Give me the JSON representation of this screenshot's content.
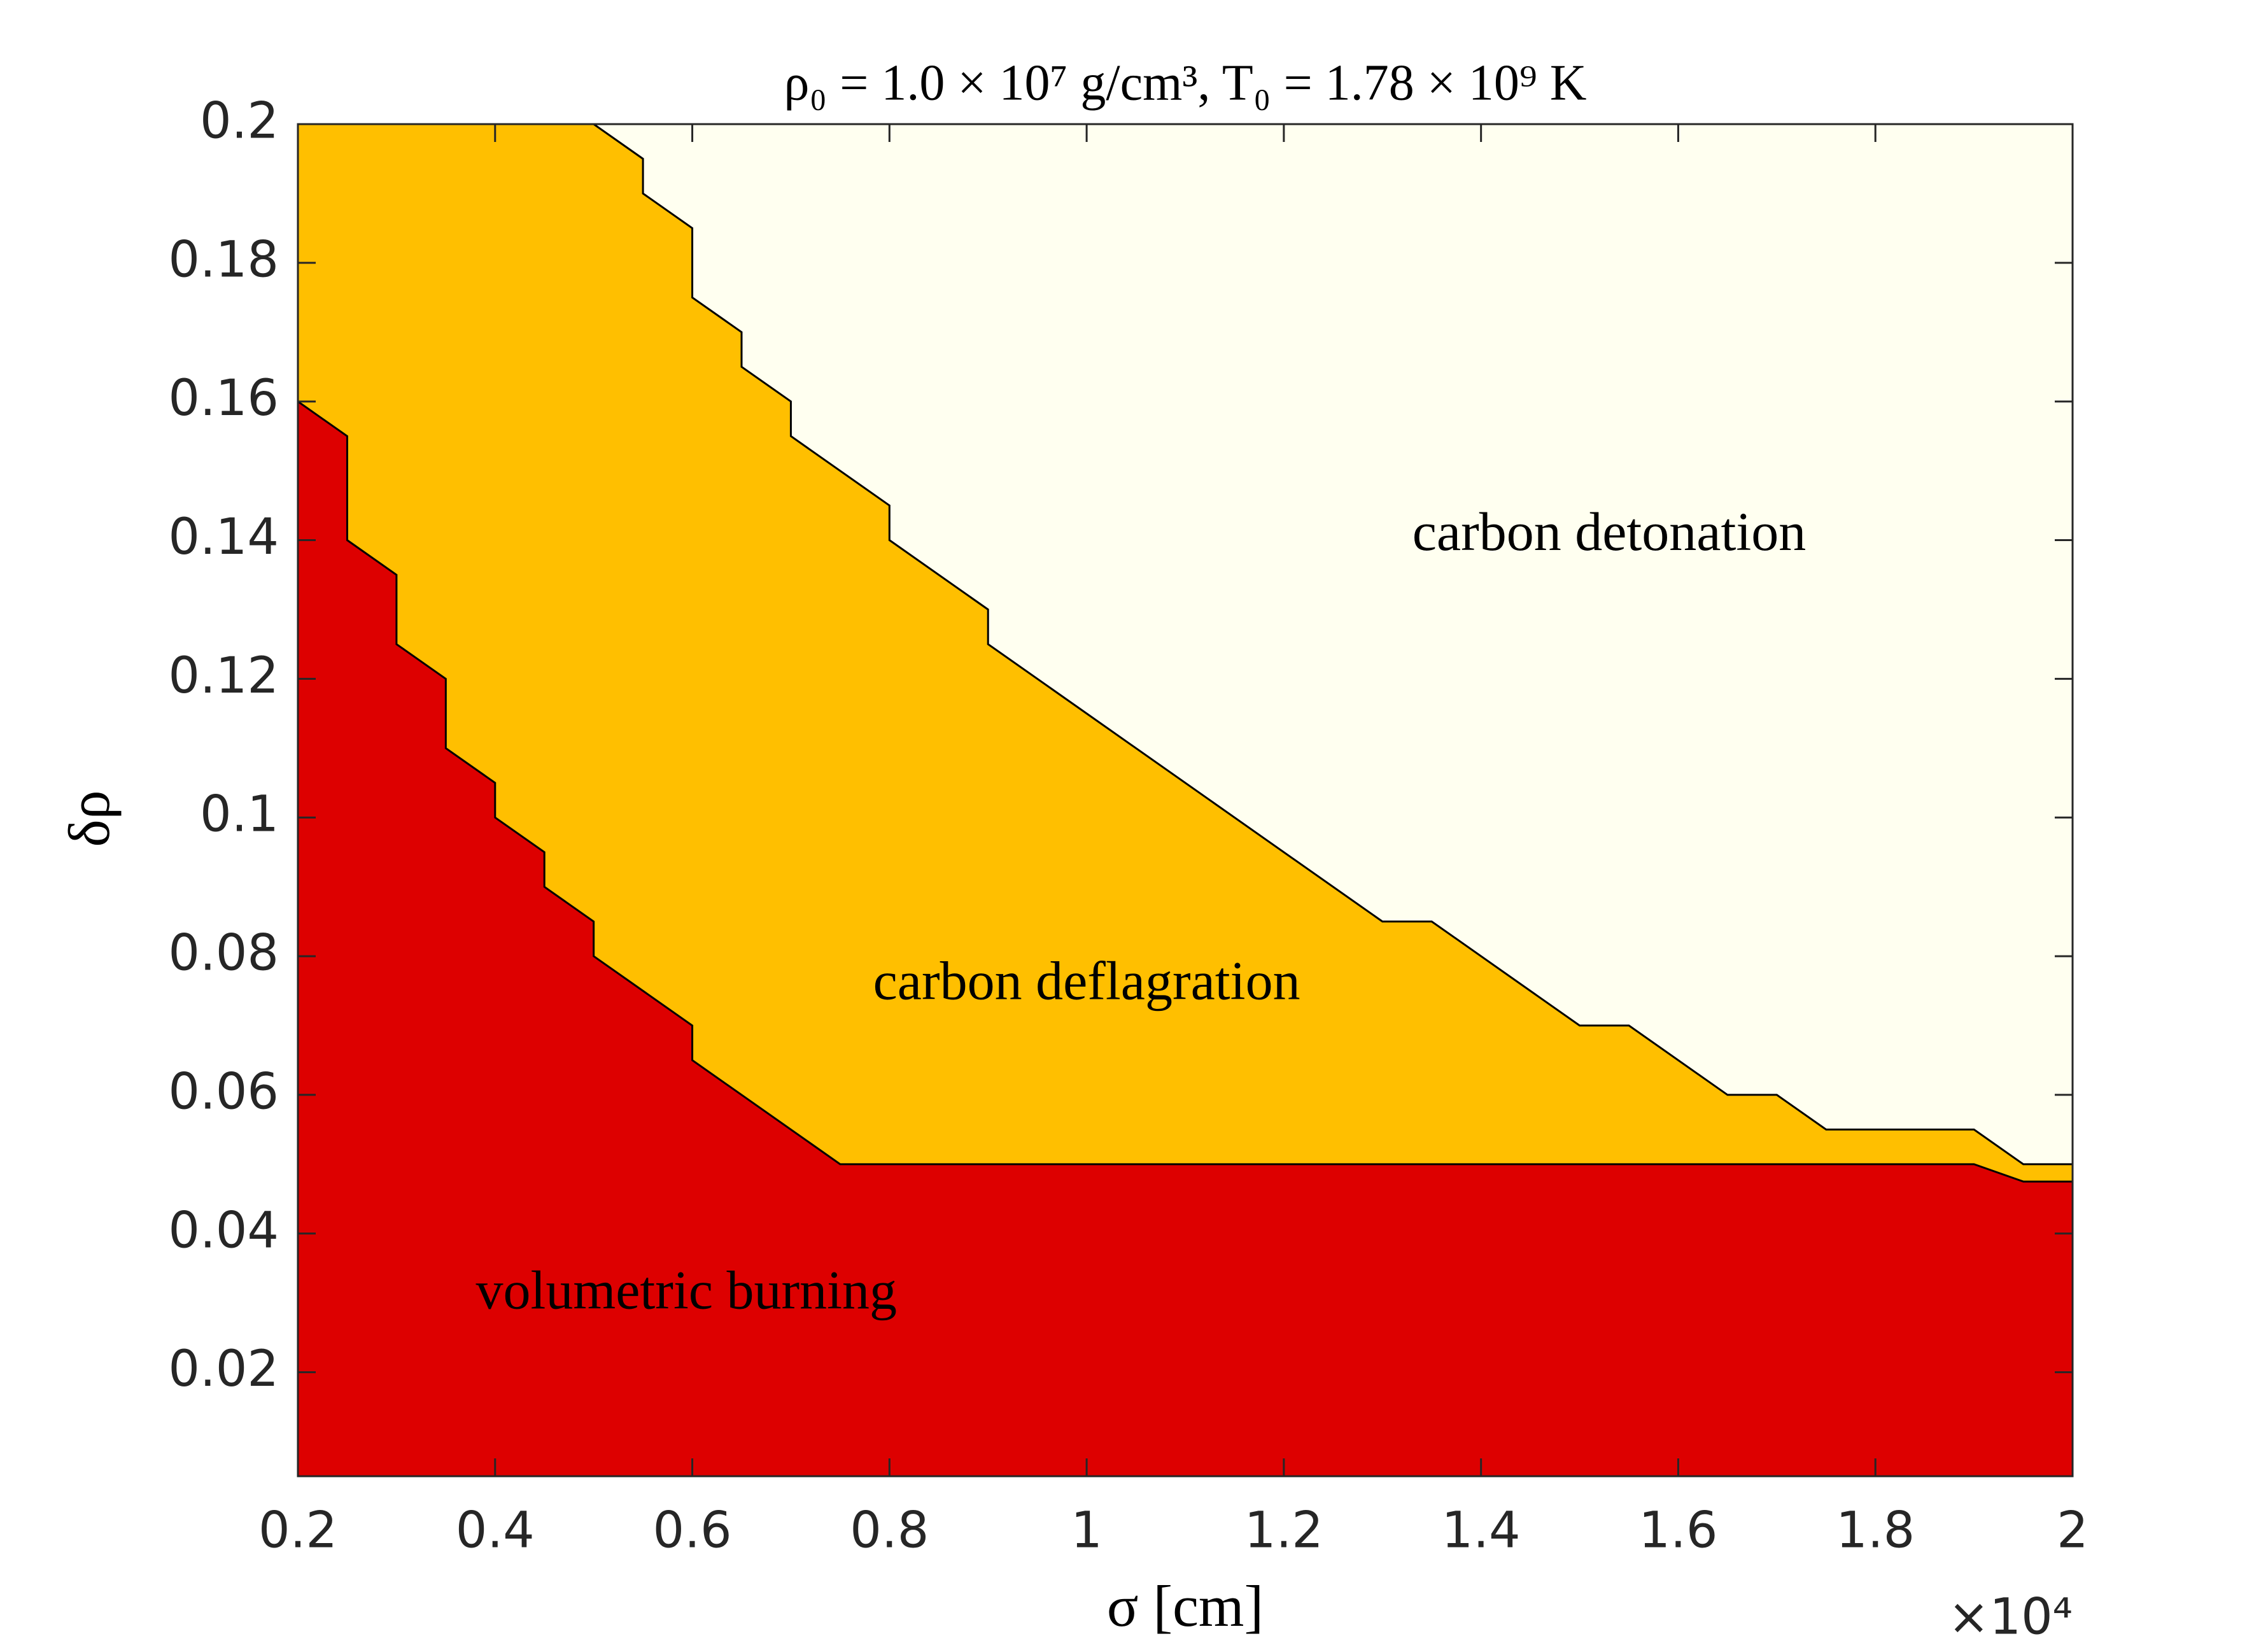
{
  "chart_data": {
    "type": "area",
    "title": "ρ₀ = 1.0 × 10⁷ g/cm³, T₀ = 1.78 × 10⁹ K",
    "x_label": "σ [cm]",
    "y_label": "δρ",
    "x_multiplier": "×10⁴",
    "series": [
      {
        "name": "carbon detonation",
        "color": "#fffff0"
      },
      {
        "name": "carbon deflagration",
        "color": "#ffbf00",
        "x": [
          0.2,
          0.5,
          0.55,
          0.55,
          0.6,
          0.6,
          0.65,
          0.65,
          0.7,
          0.7,
          0.8,
          0.8,
          0.9,
          0.9,
          1.3,
          1.35,
          1.5,
          1.55,
          1.65,
          1.7,
          1.75,
          1.9,
          1.95,
          2
        ],
        "values": [
          0.2,
          0.2,
          0.195,
          0.19,
          0.185,
          0.175,
          0.17,
          0.165,
          0.16,
          0.155,
          0.145,
          0.14,
          0.13,
          0.125,
          0.085,
          0.085,
          0.07,
          0.07,
          0.06,
          0.06,
          0.055,
          0.055,
          0.05,
          0.05
        ]
      },
      {
        "name": "volumetric burning",
        "color": "#dd0000",
        "x": [
          0.2,
          0.25,
          0.25,
          0.3,
          0.3,
          0.35,
          0.35,
          0.4,
          0.4,
          0.45,
          0.45,
          0.5,
          0.5,
          0.6,
          0.6,
          0.75,
          1.9,
          1.95,
          2
        ],
        "values": [
          0.16,
          0.155,
          0.14,
          0.135,
          0.125,
          0.12,
          0.11,
          0.105,
          0.1,
          0.095,
          0.09,
          0.085,
          0.08,
          0.07,
          0.065,
          0.05,
          0.05,
          0.0475,
          0.0475
        ]
      }
    ],
    "xlim": [
      0.2,
      2
    ],
    "xticks": [
      0.2,
      0.4,
      0.6,
      0.8,
      1,
      1.2,
      1.4,
      1.6,
      1.8,
      2
    ],
    "ylim": [
      0.005,
      0.2
    ],
    "yticks": [
      0.02,
      0.04,
      0.06,
      0.08,
      0.1,
      0.12,
      0.14,
      0.16,
      0.18,
      0.2
    ],
    "grid": false
  }
}
